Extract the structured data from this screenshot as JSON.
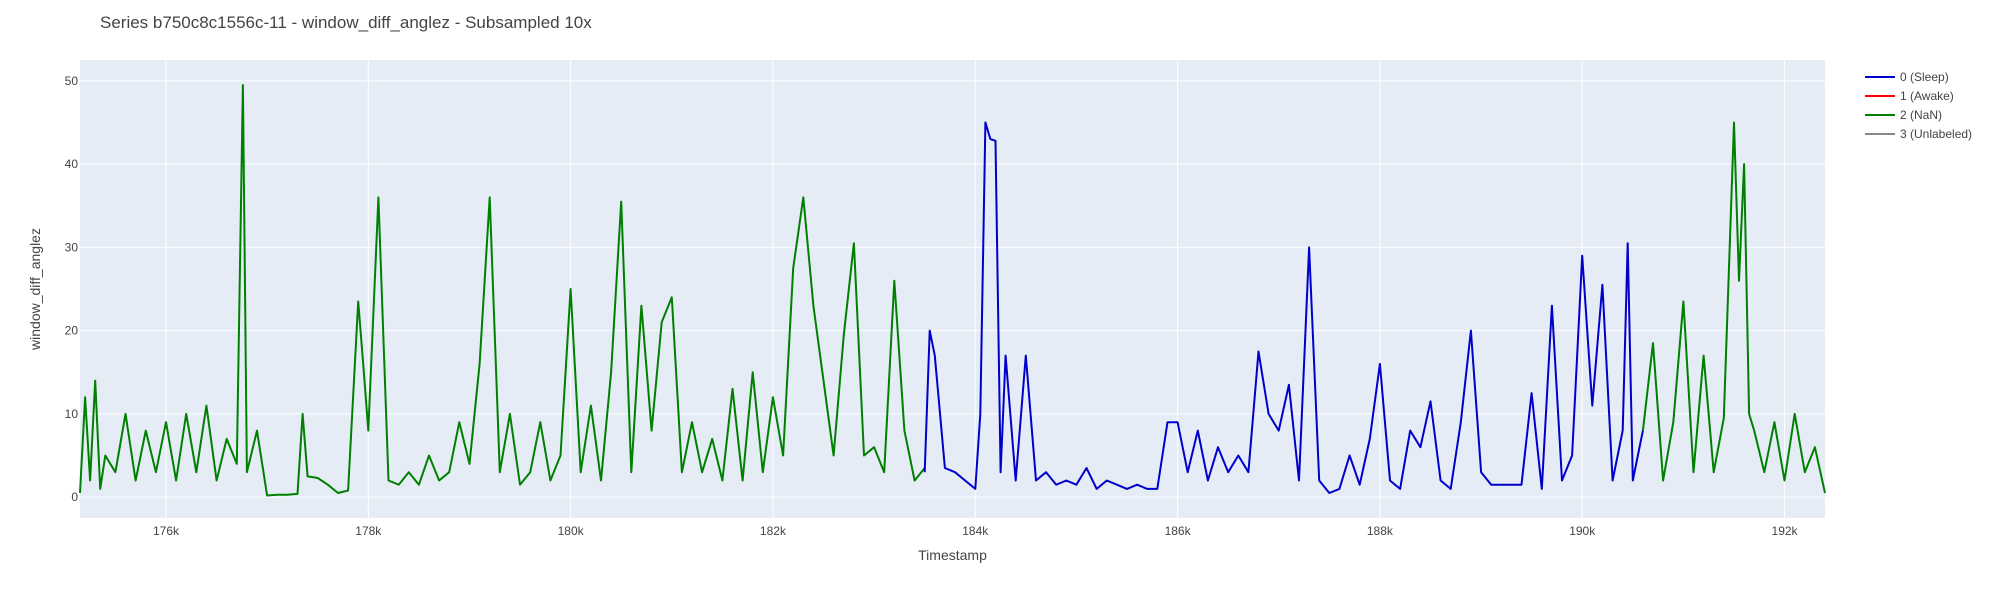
{
  "chart_data": {
    "type": "line",
    "title": "Series b750c8c1556c-11 - window_diff_anglez - Subsampled 10x",
    "xlabel": "Timestamp",
    "ylabel": "window_diff_anglez",
    "xlim": [
      175150,
      192400
    ],
    "ylim": [
      -2.5,
      52.5
    ],
    "xticks": [
      176000,
      178000,
      180000,
      182000,
      184000,
      186000,
      188000,
      190000,
      192000
    ],
    "xtick_labels": [
      "176k",
      "178k",
      "180k",
      "182k",
      "184k",
      "186k",
      "188k",
      "190k",
      "192k"
    ],
    "yticks": [
      0,
      10,
      20,
      30,
      40,
      50
    ],
    "ytick_labels": [
      "0",
      "10",
      "20",
      "30",
      "40",
      "50"
    ],
    "grid": true,
    "legend_position": "top-right, outside plot",
    "legend": [
      {
        "name": "0 (Sleep)",
        "color": "#0000cc"
      },
      {
        "name": "1 (Awake)",
        "color": "#ff0000"
      },
      {
        "name": "2 (NaN)",
        "color": "#008000"
      },
      {
        "name": "3 (Unlabeled)",
        "color": "#888888"
      }
    ],
    "series": [
      {
        "name": "2 (NaN)",
        "color": "#008000",
        "x": [
          175150,
          175200,
          175250,
          175300,
          175350,
          175400,
          175500,
          175600,
          175700,
          175800,
          175900,
          176000,
          176100,
          176200,
          176300,
          176400,
          176500,
          176600,
          176700,
          176760,
          176800,
          176900,
          177000,
          177100,
          177200,
          177300,
          177350,
          177400,
          177500,
          177600,
          177700,
          177800,
          177900,
          177950,
          178000,
          178100,
          178200,
          178300,
          178400,
          178500,
          178600,
          178700,
          178800,
          178900,
          179000,
          179100,
          179200,
          179300,
          179400,
          179500,
          179600,
          179700,
          179800,
          179900,
          180000,
          180100,
          180200,
          180300,
          180400,
          180500,
          180600,
          180700,
          180800,
          180900,
          181000,
          181100,
          181200,
          181300,
          181400,
          181500,
          181600,
          181700,
          181800,
          181900,
          182000,
          182100,
          182200,
          182300,
          182400,
          182500,
          182600,
          182700,
          182800,
          182900,
          183000,
          183100,
          183200,
          183300,
          183400,
          183500
        ],
        "values": [
          0.5,
          12,
          2,
          14,
          1,
          5,
          3,
          10,
          2,
          8,
          3,
          9,
          2,
          10,
          3,
          11,
          2,
          7,
          4,
          49.5,
          3,
          8,
          0.2,
          0.3,
          0.3,
          0.4,
          10,
          2.5,
          2.3,
          1.5,
          0.5,
          0.8,
          23.5,
          16,
          8,
          36,
          2,
          1.5,
          3,
          1.5,
          5,
          2,
          3,
          9,
          4,
          16,
          36,
          3,
          10,
          1.5,
          3,
          9,
          2,
          5,
          25,
          3,
          11,
          2,
          15,
          35.5,
          3,
          23,
          8,
          21,
          24,
          3,
          9,
          3,
          7,
          2,
          13,
          2,
          15,
          3,
          12,
          5,
          27.5,
          36,
          23,
          14,
          5,
          19.5,
          30.5,
          5,
          6,
          3,
          26,
          8,
          2,
          3.5
        ]
      },
      {
        "name": "0 (Sleep)",
        "color": "#0000cc",
        "x": [
          183500,
          183550,
          183600,
          183700,
          183800,
          183900,
          184000,
          184050,
          184100,
          184150,
          184200,
          184250,
          184300,
          184400,
          184500,
          184600,
          184700,
          184800,
          184900,
          185000,
          185100,
          185200,
          185300,
          185400,
          185500,
          185600,
          185700,
          185800,
          185900,
          186000,
          186100,
          186200,
          186300,
          186400,
          186500,
          186600,
          186700,
          186800,
          186900,
          187000,
          187100,
          187200,
          187300,
          187400,
          187500,
          187600,
          187700,
          187800,
          187900,
          188000,
          188100,
          188200,
          188300,
          188400,
          188500,
          188600,
          188700,
          188800,
          188900,
          189000,
          189100,
          189200,
          189300,
          189400,
          189500,
          189600,
          189700,
          189800,
          189900,
          190000,
          190100,
          190200,
          190300,
          190400,
          190450,
          190500,
          190600
        ],
        "values": [
          3,
          20,
          17,
          3.5,
          3,
          2,
          1,
          10,
          45,
          43,
          42.8,
          3,
          17,
          2,
          17,
          2,
          3,
          1.5,
          2,
          1.5,
          3.5,
          1,
          2,
          1.5,
          1,
          1.5,
          1,
          1,
          9,
          9,
          3,
          8,
          2,
          6,
          3,
          5,
          3,
          17.5,
          10,
          8,
          13.5,
          2,
          30,
          2,
          0.5,
          1,
          5,
          1.5,
          7,
          16,
          2,
          1,
          8,
          6,
          11.5,
          2,
          1,
          9,
          20,
          3,
          1.5,
          1.5,
          1.5,
          1.5,
          12.5,
          1,
          23,
          2,
          5,
          29,
          11,
          25.5,
          2,
          8,
          30.5,
          2,
          8
        ]
      },
      {
        "name": "2 (NaN)",
        "color": "#008000",
        "x": [
          190600,
          190700,
          190800,
          190900,
          191000,
          191100,
          191200,
          191300,
          191400,
          191500,
          191550,
          191600,
          191650,
          191700,
          191800,
          191900,
          192000,
          192100,
          192200,
          192300,
          192400
        ],
        "values": [
          8,
          18.5,
          2,
          9,
          23.5,
          3,
          17,
          3,
          9.5,
          45,
          26,
          40,
          10,
          8,
          3,
          9,
          2,
          10,
          3,
          6,
          0.5
        ]
      }
    ]
  }
}
